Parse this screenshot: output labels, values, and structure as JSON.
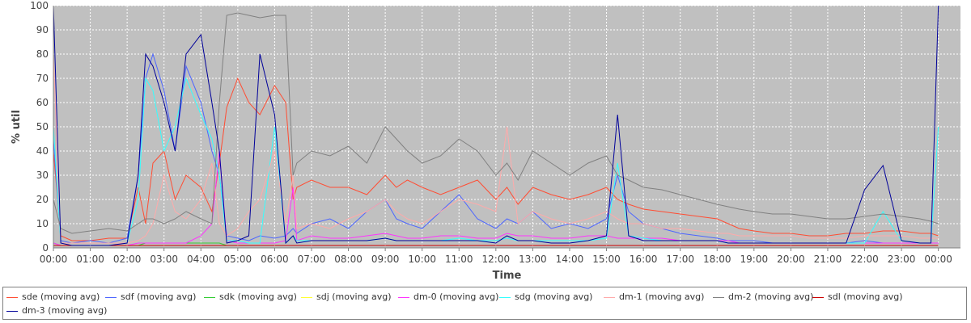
{
  "chart_data": {
    "type": "line",
    "xlabel": "Time",
    "ylabel": "% util",
    "ylim": [
      0,
      100
    ],
    "yticks": [
      "0",
      "10",
      "20",
      "30",
      "40",
      "50",
      "60",
      "70",
      "80",
      "90",
      "100"
    ],
    "xticks": [
      "00:00",
      "01:00",
      "02:00",
      "03:00",
      "04:00",
      "05:00",
      "06:00",
      "07:00",
      "08:00",
      "09:00",
      "10:00",
      "11:00",
      "12:00",
      "13:00",
      "14:00",
      "15:00",
      "16:00",
      "17:00",
      "18:00",
      "19:00",
      "20:00",
      "21:00",
      "22:00",
      "23:00",
      "00:00"
    ],
    "grid": true,
    "legend_position": "bottom",
    "background": "#c0c0c0",
    "x_hours": [
      0,
      0.2,
      0.5,
      1,
      1.5,
      2,
      2.3,
      2.5,
      2.7,
      3,
      3.3,
      3.6,
      4,
      4.3,
      4.5,
      4.7,
      5,
      5.3,
      5.6,
      6,
      6.3,
      6.5,
      6.6,
      7,
      7.5,
      8,
      8.5,
      9,
      9.3,
      9.6,
      10,
      10.5,
      11,
      11.5,
      12,
      12.3,
      12.6,
      13,
      13.5,
      14,
      14.5,
      15,
      15.3,
      15.6,
      16,
      16.5,
      17,
      17.5,
      18,
      18.3,
      18.6,
      19,
      19.5,
      20,
      20.5,
      21,
      21.5,
      22,
      22.5,
      23,
      23.5,
      23.8,
      24
    ],
    "series": [
      {
        "name": "sde (moving avg)",
        "color": "#ff4d33",
        "values": [
          40,
          5,
          3,
          3,
          4,
          4,
          25,
          10,
          35,
          40,
          20,
          30,
          25,
          15,
          35,
          58,
          70,
          60,
          55,
          67,
          60,
          20,
          25,
          28,
          25,
          25,
          22,
          30,
          25,
          28,
          25,
          22,
          25,
          28,
          20,
          25,
          18,
          25,
          22,
          20,
          22,
          25,
          20,
          18,
          16,
          15,
          14,
          13,
          12,
          10,
          8,
          7,
          6,
          6,
          5,
          5,
          6,
          6,
          7,
          7,
          6,
          6,
          5
        ]
      },
      {
        "name": "sdf (moving avg)",
        "color": "#4d66ff",
        "values": [
          45,
          3,
          2,
          3,
          2,
          4,
          30,
          70,
          80,
          65,
          40,
          75,
          60,
          40,
          30,
          5,
          4,
          3,
          5,
          4,
          5,
          8,
          6,
          10,
          12,
          8,
          15,
          20,
          12,
          10,
          8,
          15,
          22,
          12,
          8,
          12,
          10,
          15,
          8,
          10,
          8,
          12,
          30,
          15,
          10,
          8,
          6,
          5,
          4,
          3,
          3,
          3,
          2,
          2,
          2,
          2,
          2,
          3,
          2,
          2,
          2,
          2,
          2
        ]
      },
      {
        "name": "sdk (moving avg)",
        "color": "#33cc33",
        "values": [
          2,
          1,
          1,
          1,
          1,
          1,
          1,
          2,
          2,
          2,
          2,
          2,
          2,
          2,
          2,
          1,
          1,
          1,
          1,
          1,
          1,
          1,
          1,
          1,
          1,
          1,
          1,
          1,
          1,
          1,
          1,
          1,
          1,
          1,
          1,
          1,
          1,
          1,
          1,
          1,
          1,
          1,
          1,
          1,
          1,
          1,
          1,
          1,
          1,
          1,
          1,
          1,
          1,
          1,
          1,
          1,
          1,
          1,
          1,
          1,
          1,
          1,
          1
        ]
      },
      {
        "name": "sdj (moving avg)",
        "color": "#ffff33",
        "values": [
          1,
          1,
          1,
          1,
          1,
          1,
          1,
          1,
          1,
          1,
          1,
          1,
          1,
          1,
          1,
          1,
          1,
          1,
          1,
          1,
          1,
          1,
          1,
          1,
          1,
          1,
          1,
          1,
          1,
          1,
          1,
          1,
          1,
          1,
          1,
          1,
          1,
          1,
          1,
          1,
          1,
          1,
          1,
          1,
          1,
          1,
          1,
          1,
          1,
          1,
          1,
          1,
          1,
          1,
          1,
          1,
          1,
          1,
          1,
          1,
          1,
          1,
          1
        ]
      },
      {
        "name": "dm-0 (moving avg)",
        "color": "#ff33ff",
        "values": [
          2,
          1,
          1,
          1,
          1,
          1,
          2,
          2,
          2,
          2,
          2,
          2,
          5,
          10,
          40,
          3,
          2,
          2,
          2,
          2,
          3,
          25,
          3,
          5,
          4,
          4,
          5,
          6,
          5,
          4,
          4,
          5,
          5,
          4,
          4,
          6,
          5,
          5,
          4,
          4,
          5,
          5,
          4,
          4,
          4,
          4,
          3,
          3,
          3,
          3,
          2,
          2,
          2,
          2,
          2,
          2,
          2,
          2,
          2,
          2,
          2,
          2,
          2
        ]
      },
      {
        "name": "sdg (moving avg)",
        "color": "#33ffff",
        "values": [
          50,
          2,
          2,
          2,
          2,
          2,
          20,
          70,
          65,
          40,
          50,
          70,
          55,
          45,
          30,
          3,
          3,
          2,
          2,
          50,
          2,
          5,
          3,
          3,
          3,
          3,
          3,
          4,
          3,
          3,
          3,
          3,
          4,
          3,
          3,
          4,
          3,
          3,
          3,
          3,
          3,
          4,
          35,
          5,
          4,
          3,
          3,
          3,
          3,
          2,
          2,
          2,
          2,
          2,
          2,
          2,
          2,
          2,
          15,
          3,
          2,
          2,
          50
        ]
      },
      {
        "name": "dm-1 (moving avg)",
        "color": "#ffaaaa",
        "values": [
          80,
          2,
          2,
          2,
          2,
          2,
          3,
          5,
          10,
          30,
          15,
          12,
          20,
          35,
          10,
          5,
          8,
          15,
          20,
          40,
          10,
          30,
          8,
          10,
          8,
          12,
          15,
          20,
          15,
          12,
          10,
          15,
          20,
          18,
          15,
          50,
          10,
          15,
          12,
          10,
          12,
          15,
          12,
          10,
          10,
          8,
          8,
          7,
          6,
          6,
          5,
          5,
          5,
          5,
          4,
          4,
          4,
          5,
          5,
          5,
          4,
          4,
          4
        ]
      },
      {
        "name": "dm-2 (moving avg)",
        "color": "#808080",
        "values": [
          20,
          8,
          6,
          7,
          8,
          7,
          10,
          12,
          12,
          10,
          12,
          15,
          12,
          10,
          60,
          96,
          97,
          96,
          95,
          96,
          96,
          30,
          35,
          40,
          38,
          42,
          35,
          50,
          45,
          40,
          35,
          38,
          45,
          40,
          30,
          35,
          28,
          40,
          35,
          30,
          35,
          38,
          30,
          28,
          25,
          24,
          22,
          20,
          18,
          17,
          16,
          15,
          14,
          14,
          13,
          12,
          12,
          13,
          14,
          13,
          12,
          11,
          10
        ]
      },
      {
        "name": "sdl (moving avg)",
        "color": "#cc0000",
        "values": [
          1,
          1,
          1,
          1,
          1,
          1,
          1,
          1,
          1,
          1,
          1,
          1,
          1,
          1,
          1,
          1,
          1,
          1,
          1,
          1,
          1,
          1,
          1,
          1,
          1,
          1,
          1,
          1,
          1,
          1,
          1,
          1,
          1,
          1,
          1,
          1,
          1,
          1,
          1,
          1,
          1,
          1,
          1,
          1,
          1,
          1,
          1,
          1,
          1,
          1,
          1,
          1,
          1,
          1,
          1,
          1,
          1,
          1,
          1,
          1,
          1,
          1,
          1
        ]
      },
      {
        "name": "dm-3 (moving avg)",
        "color": "#000099",
        "values": [
          100,
          2,
          1,
          1,
          1,
          2,
          30,
          80,
          75,
          60,
          40,
          80,
          88,
          60,
          40,
          2,
          3,
          5,
          80,
          55,
          2,
          5,
          2,
          3,
          3,
          3,
          3,
          4,
          3,
          3,
          3,
          3,
          3,
          3,
          2,
          5,
          3,
          3,
          2,
          2,
          3,
          5,
          55,
          5,
          3,
          3,
          3,
          3,
          3,
          2,
          2,
          2,
          2,
          2,
          2,
          2,
          2,
          24,
          34,
          3,
          2,
          2,
          100
        ]
      }
    ]
  }
}
